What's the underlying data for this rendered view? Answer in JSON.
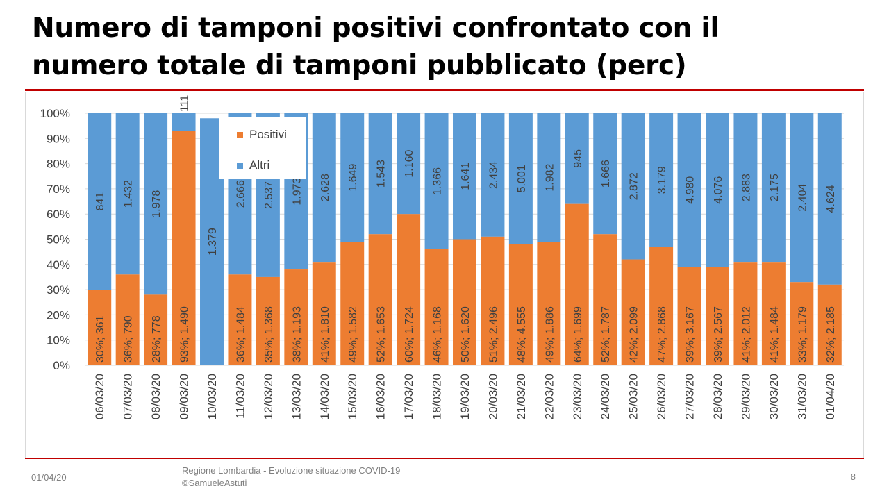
{
  "title": {
    "line1": "Numero di tamponi positivi confrontato con il",
    "line2": "numero totale di tamponi pubblicato (perc)"
  },
  "footer": {
    "date": "01/04/20",
    "source_line1": "Regione Lombardia - Evoluzione situazione COVID-19",
    "source_line2": "©SamueleAstuti",
    "page_number": "8"
  },
  "colors": {
    "positivi": "#ed7d31",
    "altri": "#5b9bd5",
    "rule": "#c00000",
    "grid": "#d9d9d9"
  },
  "chart_data": {
    "type": "bar",
    "stacked": "percent",
    "title": "",
    "xlabel": "",
    "ylabel": "",
    "ylim": [
      0,
      100
    ],
    "y_ticks": [
      "0%",
      "10%",
      "20%",
      "30%",
      "40%",
      "50%",
      "60%",
      "70%",
      "80%",
      "90%",
      "100%"
    ],
    "legend": [
      "Positivi",
      "Altri"
    ],
    "legend_position": "top-left",
    "categories": [
      "06/03/20",
      "07/03/20",
      "08/03/20",
      "09/03/20",
      "10/03/20",
      "11/03/20",
      "12/03/20",
      "13/03/20",
      "14/03/20",
      "15/03/20",
      "16/03/20",
      "17/03/20",
      "18/03/20",
      "19/03/20",
      "20/03/20",
      "21/03/20",
      "22/03/20",
      "23/03/20",
      "24/03/20",
      "25/03/20",
      "26/03/20",
      "27/03/20",
      "28/03/20",
      "29/03/20",
      "30/03/20",
      "31/03/20",
      "01/04/20"
    ],
    "series": [
      {
        "name": "Positivi",
        "color": "#ed7d31",
        "percent": [
          30,
          36,
          28,
          93,
          0,
          36,
          35,
          38,
          41,
          49,
          52,
          60,
          46,
          50,
          51,
          48,
          49,
          64,
          52,
          42,
          47,
          39,
          39,
          41,
          41,
          33,
          32
        ],
        "labels": [
          "30%; 361",
          "36%; 790",
          "28%; 778",
          "93%; 1.490",
          "",
          "36%; 1.484",
          "35%; 1.368",
          "38%; 1.193",
          "41%; 1.810",
          "49%; 1.582",
          "52%; 1.653",
          "60%; 1.724",
          "46%; 1.168",
          "50%; 1.620",
          "51%; 2.496",
          "48%; 4.555",
          "49%; 1.886",
          "64%; 1.699",
          "52%; 1.787",
          "42%; 2.099",
          "47%; 2.868",
          "39%; 3.167",
          "39%; 2.567",
          "41%; 2.012",
          "41%; 1.484",
          "33%; 1.179",
          "32%; 2.185"
        ]
      },
      {
        "name": "Altri",
        "color": "#5b9bd5",
        "percent": [
          70,
          64,
          72,
          7,
          98,
          64,
          65,
          62,
          59,
          51,
          48,
          40,
          54,
          50,
          49,
          52,
          51,
          36,
          48,
          58,
          53,
          61,
          61,
          59,
          59,
          67,
          68
        ],
        "labels": [
          "841",
          "1.432",
          "1.978",
          "111",
          "1.379",
          "2.666",
          "2.537",
          "1.973",
          "2.628",
          "1.649",
          "1.543",
          "1.160",
          "1.366",
          "1.641",
          "2.434",
          "5.001",
          "1.982",
          "945",
          "1.666",
          "2.872",
          "3.179",
          "4.980",
          "4.076",
          "2.883",
          "2.175",
          "2.404",
          "4.624"
        ]
      }
    ]
  }
}
